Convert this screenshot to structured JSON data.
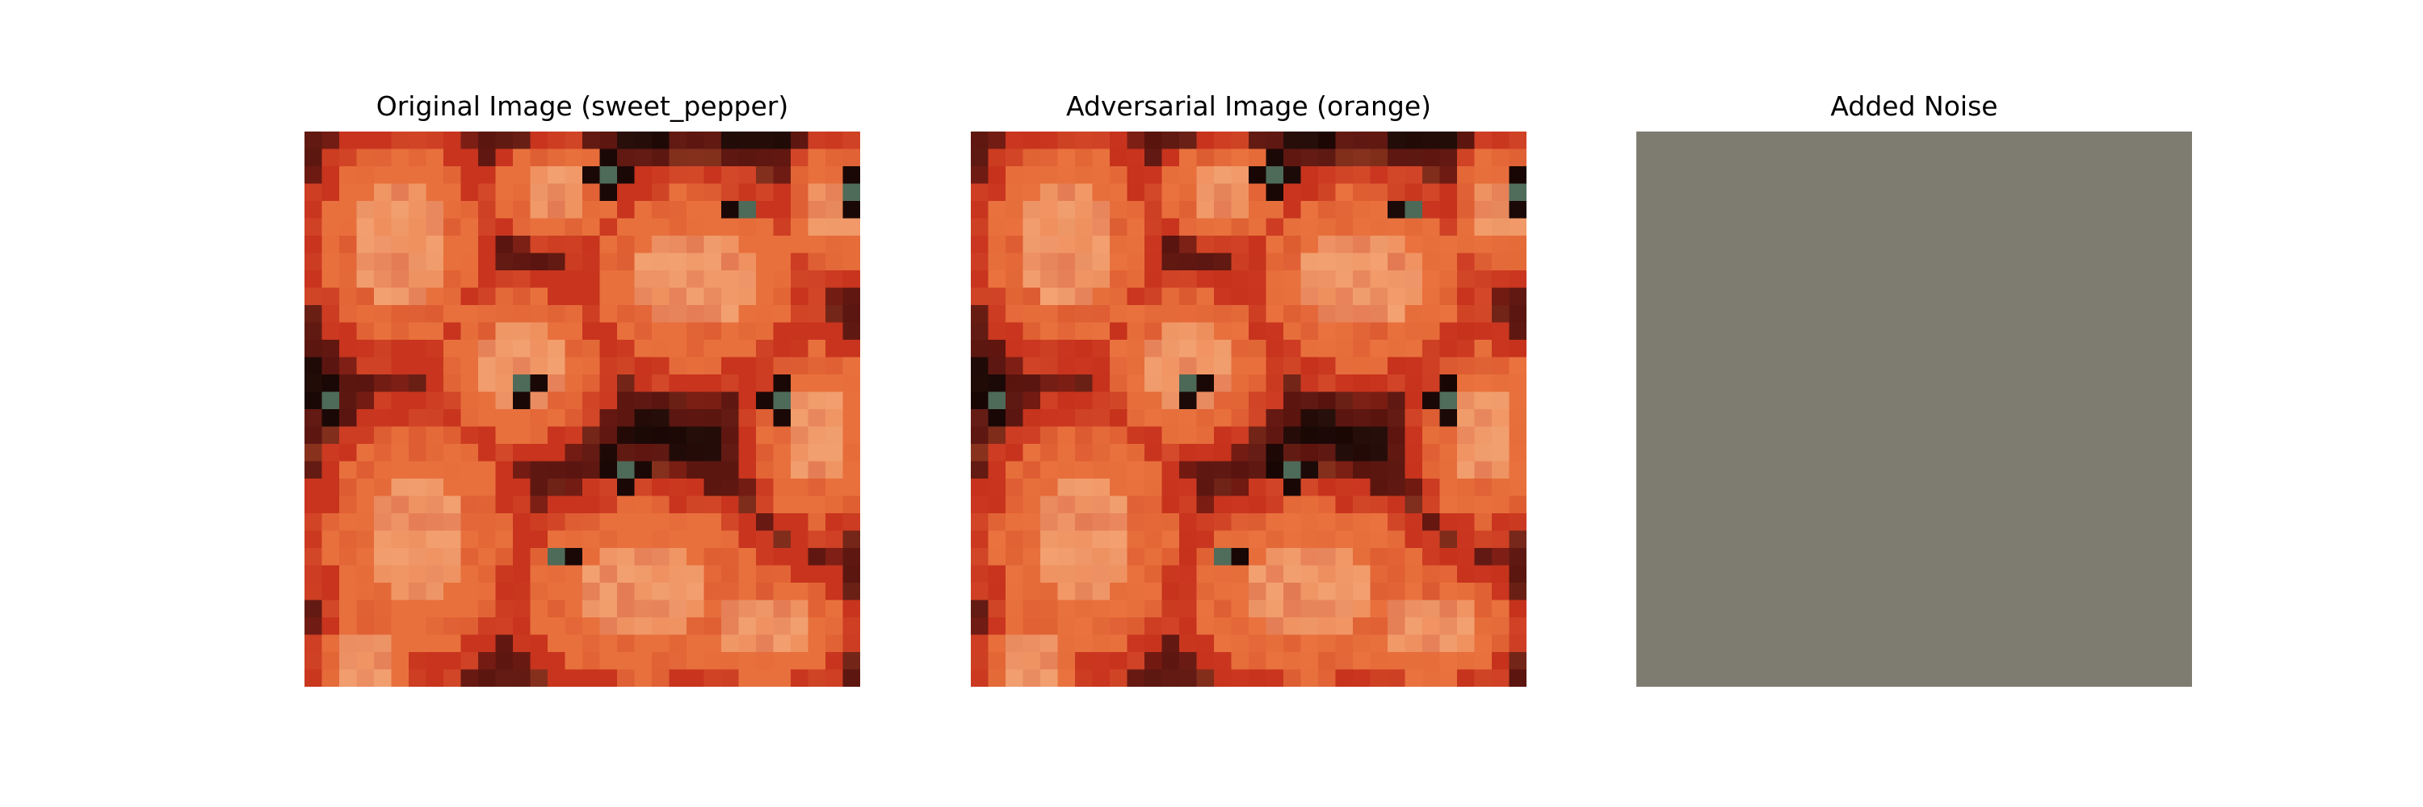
{
  "panels": [
    {
      "title": "Original Image (sweet_pepper)",
      "kind": "original"
    },
    {
      "title": "Adversarial Image (orange)",
      "kind": "adversarial"
    },
    {
      "title": "Added Noise",
      "kind": "noise",
      "fill_color": "#7e7b70"
    }
  ],
  "colors": {
    "background": "#ffffff",
    "pepper_light": "#f2a070",
    "pepper_mid": "#e8703c",
    "pepper_red": "#c8341e",
    "pepper_dark": "#5a1510",
    "shadow": "#1a0806",
    "stem_green": "#4e6a58",
    "noise_gray": "#7e7b70"
  }
}
